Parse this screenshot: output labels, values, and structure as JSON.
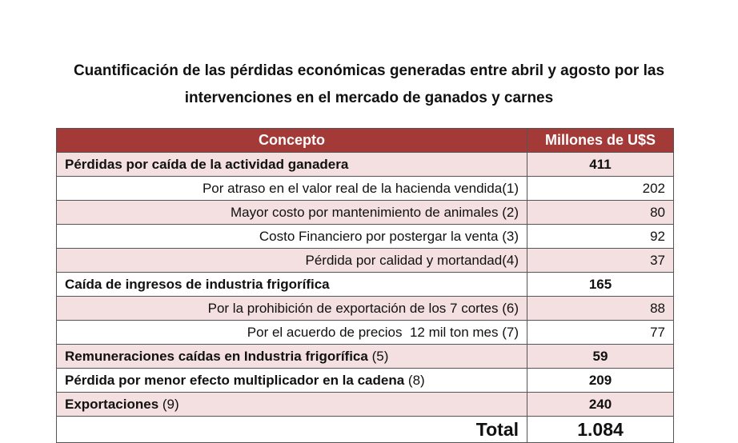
{
  "title_lines": [
    "Cuantificación de las pérdidas económicas generadas entre abril y agosto por las",
    "intervenciones en el mercado de ganados y carnes"
  ],
  "table": {
    "headers": [
      "Concepto",
      "Millones de U$S"
    ],
    "groups": [
      {
        "label": "Pérdidas por caída de la actividad ganadera",
        "value": 411,
        "items": [
          {
            "label": "Por atraso en el valor real de la hacienda vendida(1)",
            "value": 202
          },
          {
            "label": "Mayor costo por mantenimiento de animales (2)",
            "value": 80
          },
          {
            "label": "Costo Financiero por postergar la venta (3)",
            "value": 92
          },
          {
            "label": "Pérdida por calidad y mortandad(4)",
            "value": 37
          }
        ]
      },
      {
        "label": "Caída de ingresos de industria frigorífica",
        "value": 165,
        "items": [
          {
            "label": "Por la prohibición de exportación de los 7 cortes (6)",
            "value": 88
          },
          {
            "label": "Por el acuerdo de precios  12 mil ton mes (7)",
            "value": 77
          }
        ]
      },
      {
        "label": "Remuneraciones caídas en Industria frigorífica",
        "note": "(5)",
        "value": 59
      },
      {
        "label": "Pérdida por menor efecto multiplicador en la cadena",
        "note": "(8)",
        "value": 209
      },
      {
        "label": "Exportaciones",
        "note": "(9)",
        "value": 240
      }
    ],
    "total": {
      "label": "Total",
      "value": "1.084"
    }
  }
}
